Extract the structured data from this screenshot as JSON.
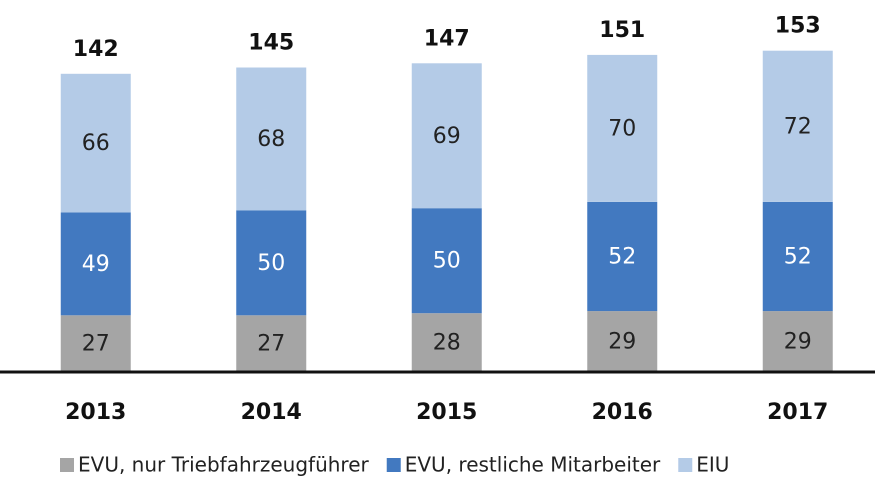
{
  "chart_data": {
    "type": "stacked_bar",
    "categories": [
      "2013",
      "2014",
      "2015",
      "2016",
      "2017"
    ],
    "series": [
      {
        "name": "EVU, nur Triebfahrzeugführer",
        "color": "#a5a5a5",
        "values": [
          27,
          27,
          28,
          29,
          29
        ]
      },
      {
        "name": "EVU, restliche Mitarbeiter",
        "color": "#4279c0",
        "values": [
          49,
          50,
          50,
          52,
          52
        ]
      },
      {
        "name": "EIU",
        "color": "#b4cbe7",
        "values": [
          66,
          68,
          69,
          70,
          72
        ]
      }
    ],
    "totals": [
      142,
      145,
      147,
      151,
      153
    ]
  }
}
